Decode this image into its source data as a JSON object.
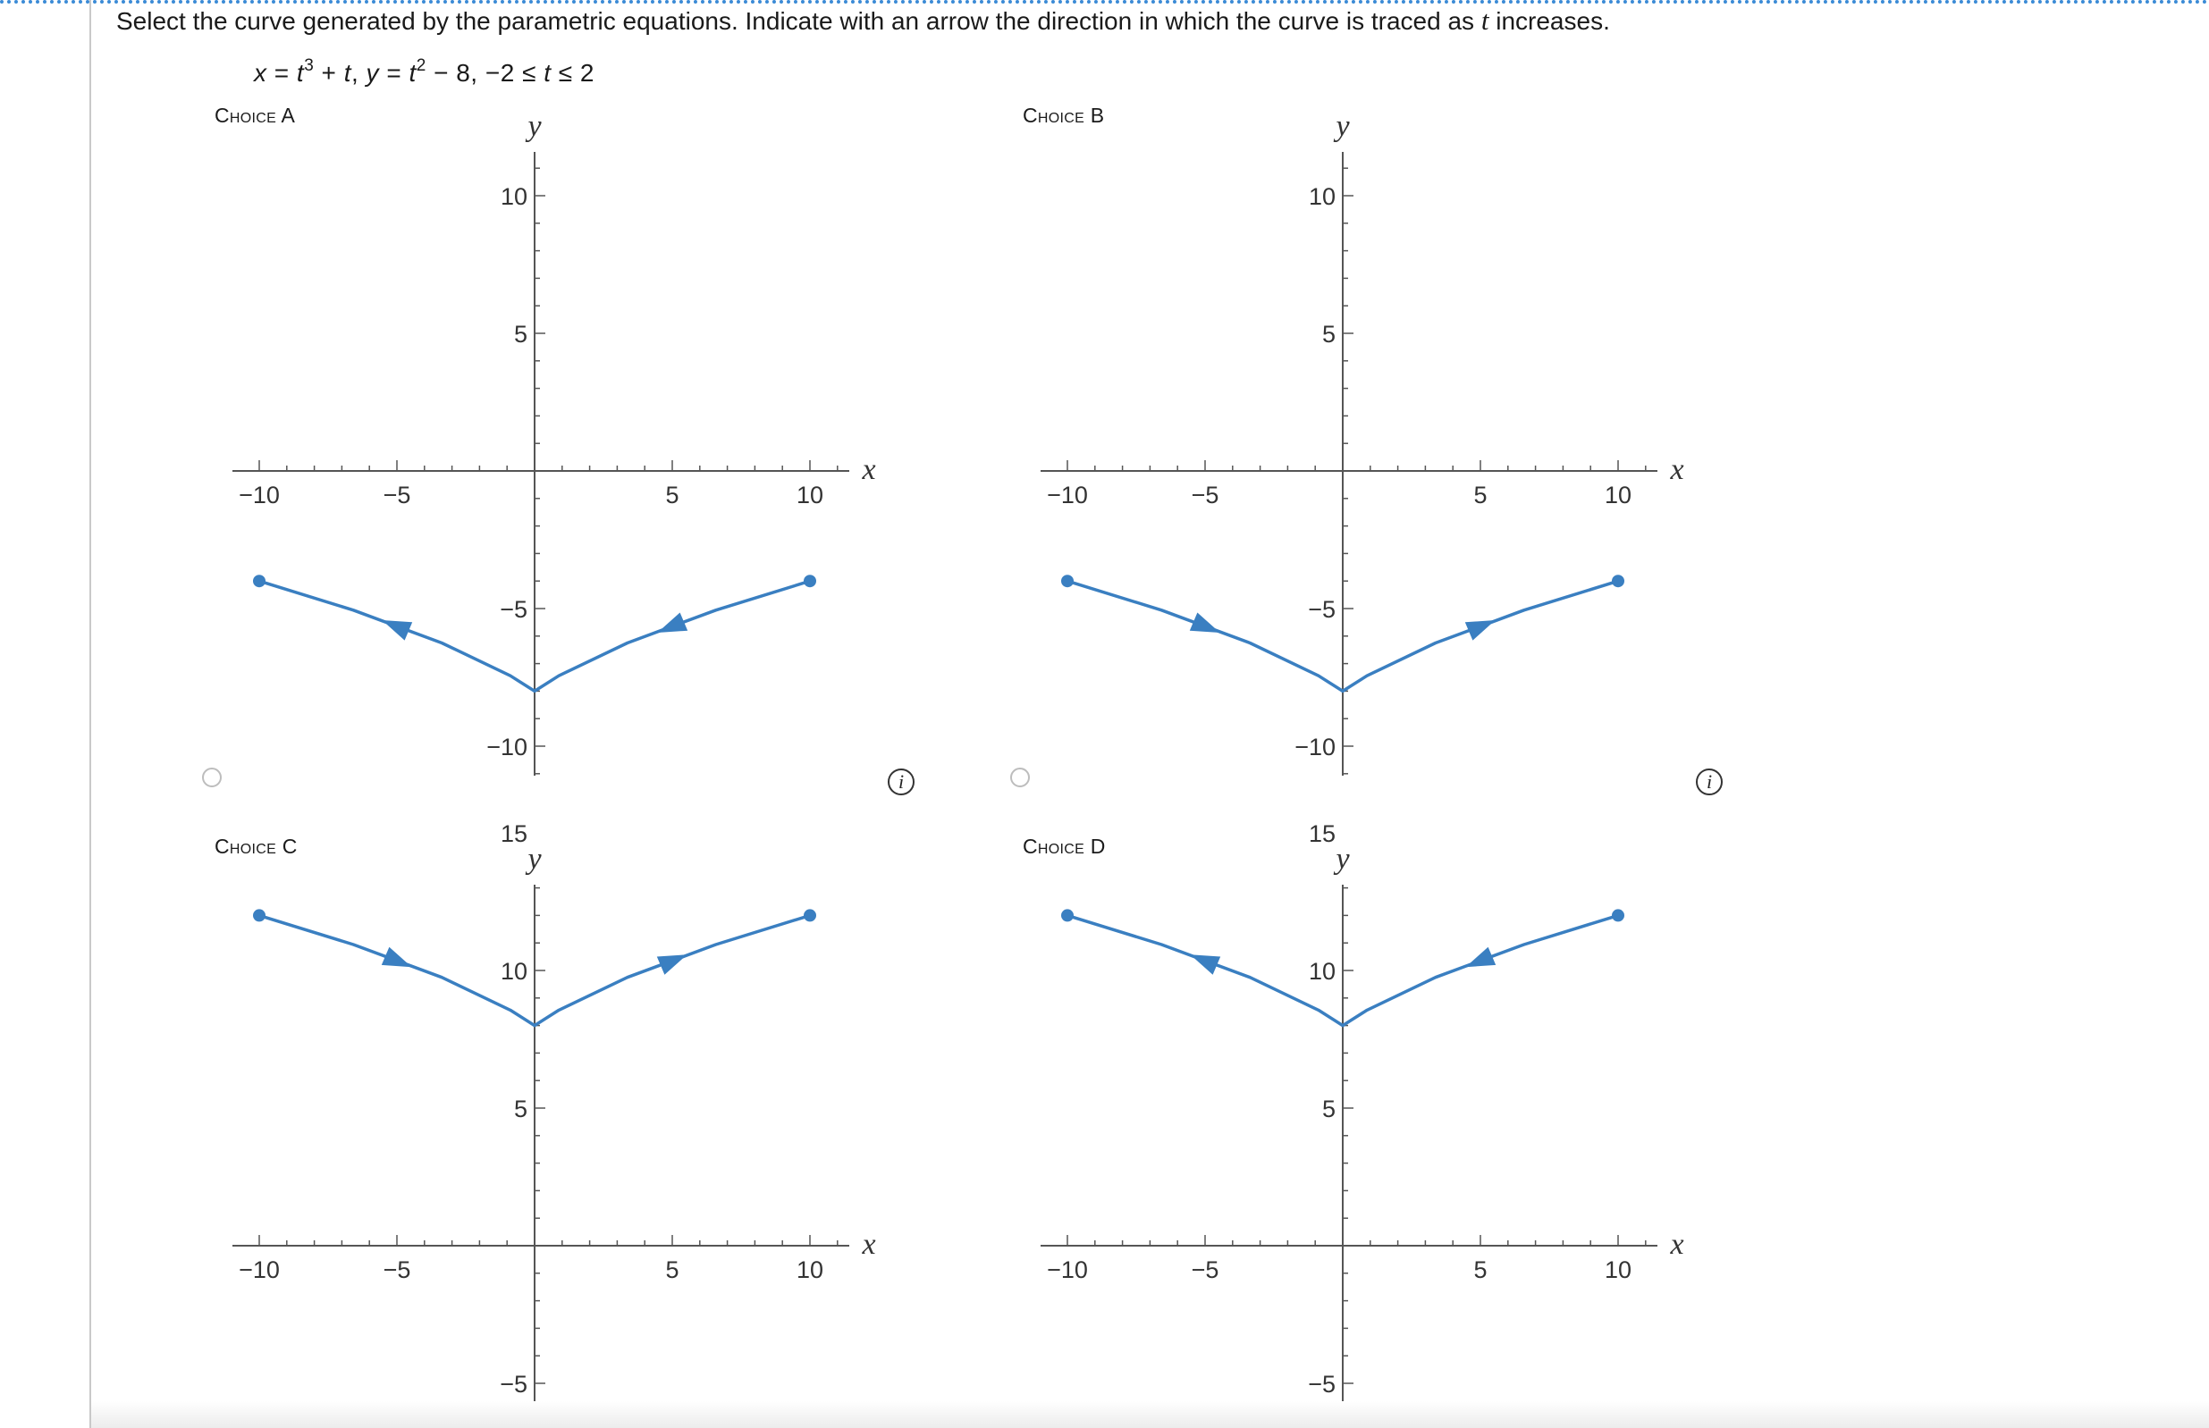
{
  "question": {
    "prefix": "Select the curve generated by the parametric equations. Indicate with an arrow the direction in which the curve is traced as ",
    "variable": "t",
    "suffix": " increases."
  },
  "equations": {
    "x_var": "x",
    "x_rhs_1": " = ",
    "x_rhs_t": "t",
    "x_rhs_exp": "3",
    "x_rhs_2": " + ",
    "x_rhs_t2": "t",
    "sep": ",   ",
    "y_var": "y",
    "y_rhs_1": " = ",
    "y_rhs_t": "t",
    "y_rhs_exp": "2",
    "y_rhs_2": " − 8,   −2 ≤ ",
    "range_t": "t",
    "range_end": " ≤ 2"
  },
  "info_label": "i",
  "colors": {
    "curve": "#3a7fc1",
    "axis": "#555555",
    "radio_border": "#bdbdbd",
    "top_border": "#3b8bd6"
  },
  "chart_data": [
    {
      "choice_label": "Choice A",
      "type": "line",
      "xlabel": "x",
      "ylabel": "y",
      "x_ticks": [
        "−10",
        "−5",
        "5",
        "10"
      ],
      "y_ticks": [
        "10",
        "5",
        "−5",
        "−10"
      ],
      "xlim": [
        -11,
        12
      ],
      "ylim": [
        -11,
        10
      ],
      "series": [
        {
          "x": [
            -10,
            -6.58,
            -3.37,
            -0.88,
            0,
            0.88,
            3.37,
            6.58,
            10
          ],
          "y": [
            -4,
            -5.06,
            -6.25,
            -7.44,
            -8,
            -7.44,
            -6.25,
            -5.06,
            -4
          ]
        }
      ],
      "endpoints": [
        [
          -10,
          -4
        ],
        [
          10,
          -4
        ]
      ],
      "arrows": [
        {
          "x": -5,
          "y": -5.65,
          "direction": "toward negative x"
        },
        {
          "x": 5,
          "y": -5.65,
          "direction": "toward negative x"
        }
      ]
    },
    {
      "choice_label": "Choice B",
      "type": "line",
      "xlabel": "x",
      "ylabel": "y",
      "x_ticks": [
        "−10",
        "−5",
        "5",
        "10"
      ],
      "y_ticks": [
        "10",
        "5",
        "−5",
        "−10"
      ],
      "xlim": [
        -11,
        12
      ],
      "ylim": [
        -11,
        10
      ],
      "series": [
        {
          "x": [
            -10,
            -6.58,
            -3.37,
            -0.88,
            0,
            0.88,
            3.37,
            6.58,
            10
          ],
          "y": [
            -4,
            -5.06,
            -6.25,
            -7.44,
            -8,
            -7.44,
            -6.25,
            -5.06,
            -4
          ]
        }
      ],
      "endpoints": [
        [
          -10,
          -4
        ],
        [
          10,
          -4
        ]
      ],
      "arrows": [
        {
          "x": -5,
          "y": -5.65,
          "direction": "toward positive x"
        },
        {
          "x": 5,
          "y": -5.65,
          "direction": "toward positive x"
        }
      ]
    },
    {
      "choice_label": "Choice C",
      "type": "line",
      "xlabel": "x",
      "ylabel": "y",
      "x_ticks": [
        "−10",
        "−5",
        "5",
        "10"
      ],
      "y_ticks": [
        "15",
        "10",
        "5",
        "−5"
      ],
      "xlim": [
        -11,
        12
      ],
      "ylim": [
        -7,
        15
      ],
      "series": [
        {
          "x": [
            -10,
            -6.58,
            -3.37,
            -0.88,
            0,
            0.88,
            3.37,
            6.58,
            10
          ],
          "y": [
            12,
            10.94,
            9.75,
            8.56,
            8,
            8.56,
            9.75,
            10.94,
            12
          ]
        }
      ],
      "endpoints": [
        [
          -10,
          12
        ],
        [
          10,
          12
        ]
      ],
      "arrows": [
        {
          "x": -5,
          "y": 10.35,
          "direction": "toward positive x"
        },
        {
          "x": 5,
          "y": 10.35,
          "direction": "toward positive x"
        }
      ]
    },
    {
      "choice_label": "Choice D",
      "type": "line",
      "xlabel": "x",
      "ylabel": "y",
      "x_ticks": [
        "−10",
        "−5",
        "5",
        "10"
      ],
      "y_ticks": [
        "15",
        "10",
        "5",
        "−5"
      ],
      "xlim": [
        -11,
        12
      ],
      "ylim": [
        -7,
        15
      ],
      "series": [
        {
          "x": [
            -10,
            -6.58,
            -3.37,
            -0.88,
            0,
            0.88,
            3.37,
            6.58,
            10
          ],
          "y": [
            12,
            10.94,
            9.75,
            8.56,
            8,
            8.56,
            9.75,
            10.94,
            12
          ]
        }
      ],
      "endpoints": [
        [
          -10,
          12
        ],
        [
          10,
          12
        ]
      ],
      "arrows": [
        {
          "x": -5,
          "y": 10.35,
          "direction": "toward negative x"
        },
        {
          "x": 5,
          "y": 10.35,
          "direction": "toward negative x"
        }
      ]
    }
  ]
}
